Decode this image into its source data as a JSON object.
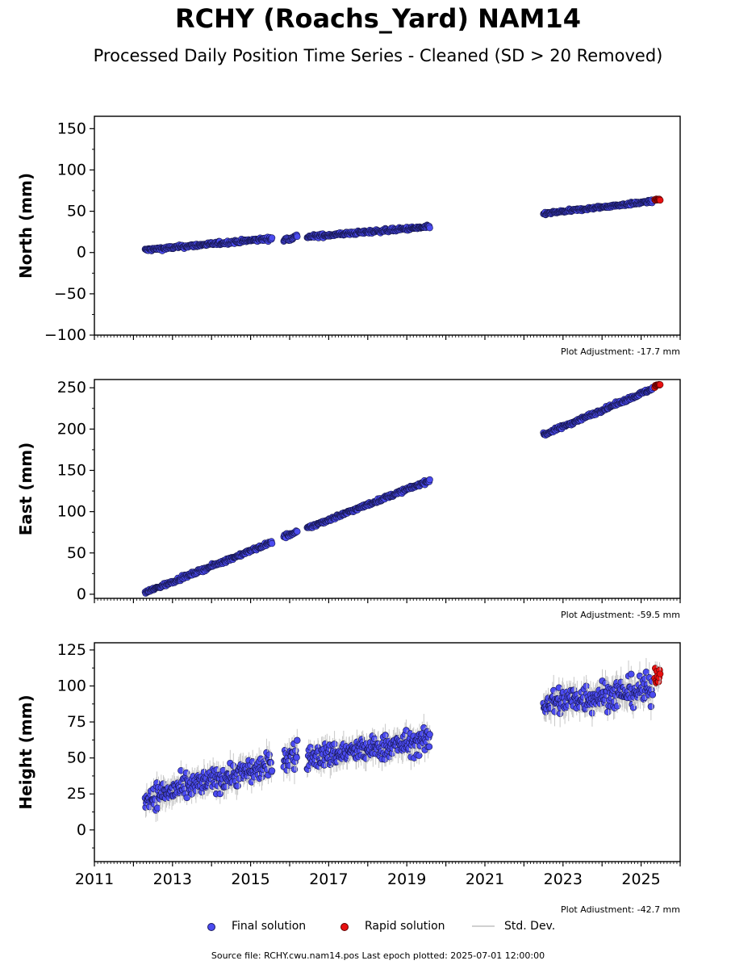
{
  "title": "RCHY (Roachs_Yard) NAM14",
  "subtitle": "Processed Daily Position Time Series - Cleaned (SD > 20 Removed)",
  "legend": {
    "final_label": "Final solution",
    "rapid_label": "Rapid solution",
    "std_label": "Std. Dev."
  },
  "source": "Source file: RCHY.cwu.nam14.pos  Last epoch plotted: 2025-07-01 12:00:00",
  "colors": {
    "final": "#4b4bf0",
    "rapid": "#e81010",
    "stddev": "#c8c8c8"
  },
  "chart_data": [
    {
      "type": "scatter",
      "ylabel": "North (mm)",
      "xlim": [
        2011,
        2026
      ],
      "ylim": [
        -100,
        165
      ],
      "yticks": [
        -100,
        -50,
        0,
        50,
        100,
        150
      ],
      "ytick_labels": [
        "−100",
        "−50",
        "0",
        "50",
        "100",
        "150"
      ],
      "xticks": [
        2011,
        2013,
        2015,
        2017,
        2019,
        2021,
        2023,
        2025
      ],
      "xtick_labels": [],
      "note": "Plot Adjustment: -17.7 mm",
      "final_segments": [
        {
          "x0": 2012.3,
          "x1": 2015.55,
          "y0": 3,
          "y1": 17,
          "noise": 2.5,
          "sd": 3
        },
        {
          "x0": 2015.85,
          "x1": 2016.2,
          "y0": 15,
          "y1": 20,
          "noise": 3,
          "sd": 3
        },
        {
          "x0": 2016.45,
          "x1": 2019.6,
          "y0": 19,
          "y1": 31,
          "noise": 2.5,
          "sd": 3
        },
        {
          "x0": 2022.5,
          "x1": 2025.3,
          "y0": 47,
          "y1": 62,
          "noise": 2,
          "sd": 3
        }
      ],
      "rapid_segments": [
        {
          "x0": 2025.35,
          "x1": 2025.5,
          "y0": 64,
          "y1": 64,
          "noise": 1,
          "sd": 3
        }
      ]
    },
    {
      "type": "scatter",
      "ylabel": "East (mm)",
      "xlim": [
        2011,
        2026
      ],
      "ylim": [
        -5,
        260
      ],
      "yticks": [
        0,
        50,
        100,
        150,
        200,
        250
      ],
      "ytick_labels": [
        "0",
        "50",
        "100",
        "150",
        "200",
        "250"
      ],
      "xticks": [
        2011,
        2013,
        2015,
        2017,
        2019,
        2021,
        2023,
        2025
      ],
      "xtick_labels": [],
      "note": "Plot Adjustment: -59.5 mm",
      "final_segments": [
        {
          "x0": 2012.3,
          "x1": 2015.55,
          "y0": 2,
          "y1": 63,
          "noise": 2.5,
          "sd": 3
        },
        {
          "x0": 2015.85,
          "x1": 2016.2,
          "y0": 70,
          "y1": 75,
          "noise": 3,
          "sd": 3
        },
        {
          "x0": 2016.45,
          "x1": 2019.6,
          "y0": 80,
          "y1": 138,
          "noise": 2.5,
          "sd": 3
        },
        {
          "x0": 2022.5,
          "x1": 2025.3,
          "y0": 193,
          "y1": 249,
          "noise": 2.5,
          "sd": 3
        }
      ],
      "rapid_segments": [
        {
          "x0": 2025.35,
          "x1": 2025.5,
          "y0": 252,
          "y1": 254,
          "noise": 2,
          "sd": 3
        }
      ]
    },
    {
      "type": "scatter",
      "ylabel": "Height (mm)",
      "xlim": [
        2011,
        2026
      ],
      "ylim": [
        -22,
        130
      ],
      "yticks": [
        0,
        25,
        50,
        75,
        100,
        125
      ],
      "ytick_labels": [
        "0",
        "25",
        "50",
        "75",
        "100",
        "125"
      ],
      "xticks": [
        2011,
        2013,
        2015,
        2017,
        2019,
        2021,
        2023,
        2025
      ],
      "xtick_labels": [
        "2011",
        "2013",
        "2015",
        "2017",
        "2019",
        "2021",
        "2023",
        "2025"
      ],
      "note": "Plot Adjustment: -42.7 mm",
      "final_segments": [
        {
          "x0": 2012.3,
          "x1": 2015.55,
          "y0": 22,
          "y1": 45,
          "noise": 10,
          "sd": 7
        },
        {
          "x0": 2015.85,
          "x1": 2016.2,
          "y0": 50,
          "y1": 52,
          "noise": 12,
          "sd": 8
        },
        {
          "x0": 2016.45,
          "x1": 2019.6,
          "y0": 50,
          "y1": 62,
          "noise": 10,
          "sd": 7
        },
        {
          "x0": 2022.5,
          "x1": 2025.3,
          "y0": 88,
          "y1": 98,
          "noise": 12,
          "sd": 8
        }
      ],
      "rapid_segments": [
        {
          "x0": 2025.35,
          "x1": 2025.5,
          "y0": 108,
          "y1": 108,
          "noise": 9,
          "sd": 6
        }
      ]
    }
  ]
}
